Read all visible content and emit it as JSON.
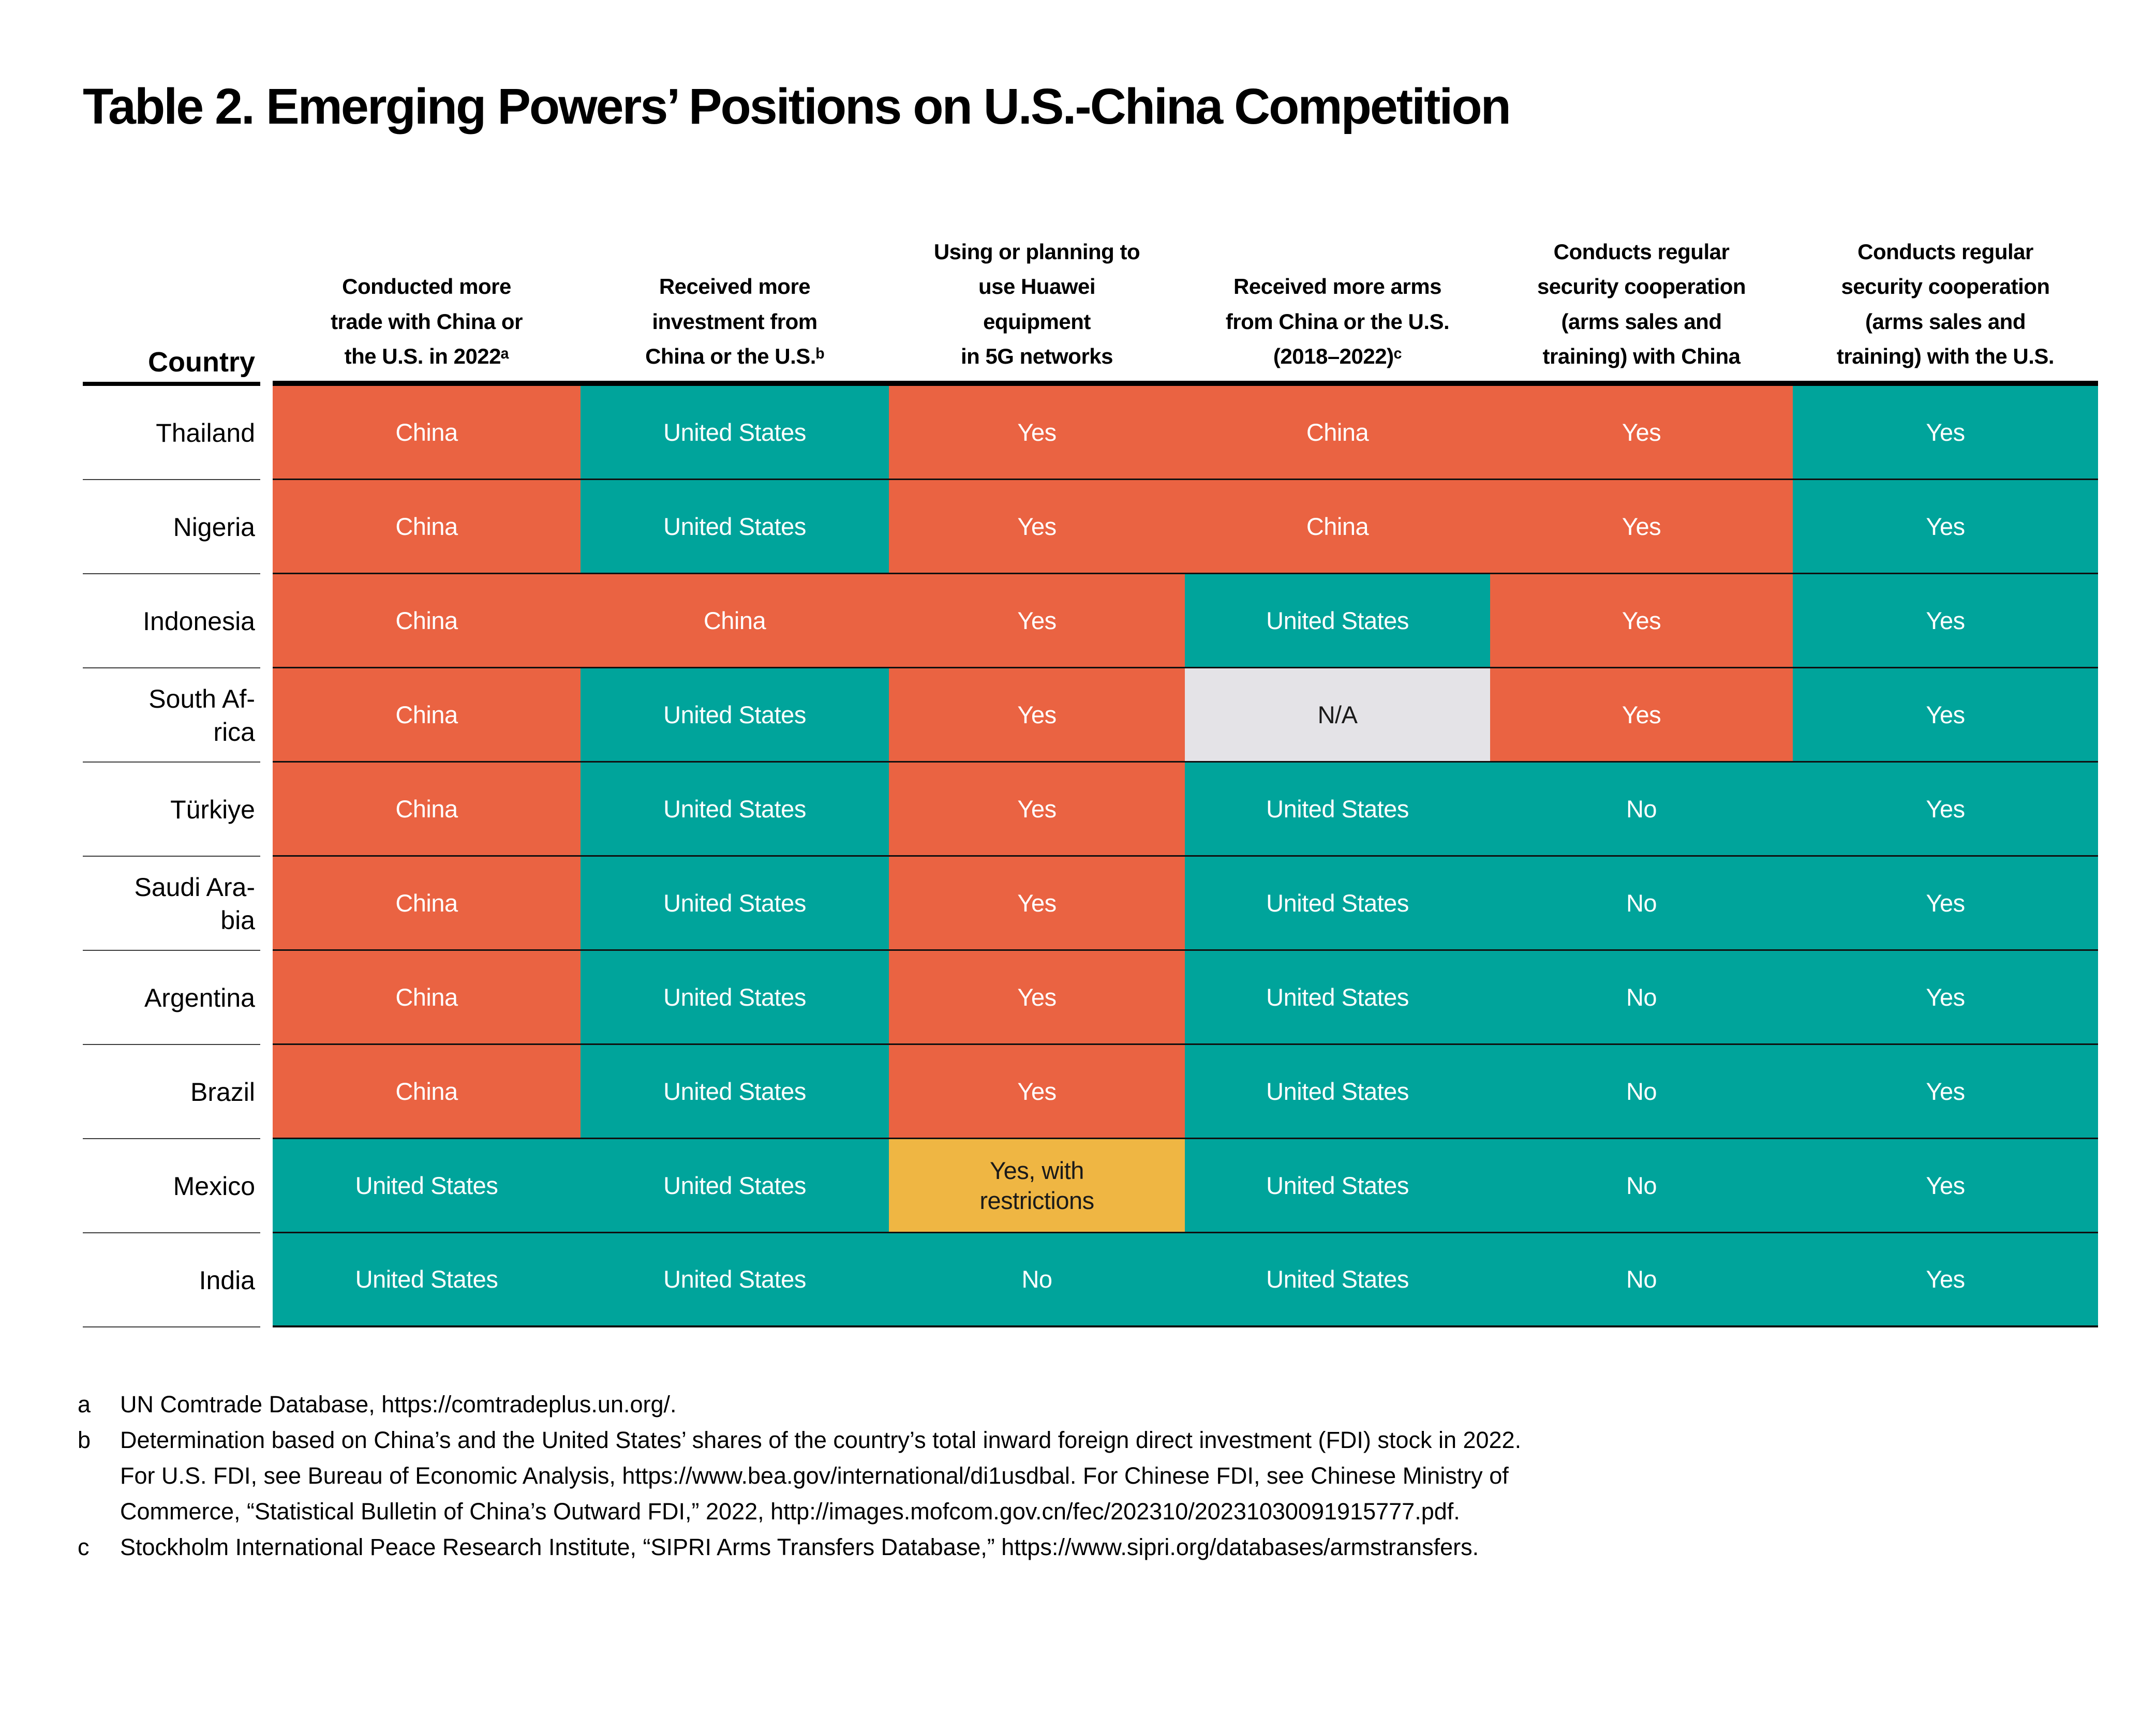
{
  "title": "Table 2. Emerging Powers’ Positions on U.S.-China Competition",
  "color_key": {
    "china_leaning": "#EA6342",
    "us_leaning": "#00A49B",
    "yes_with_restrictions": "#EFB643",
    "not_applicable": "#E4E3E7"
  },
  "chart_data": {
    "type": "table",
    "title": "Table 2. Emerging Powers’ Positions on U.S.-China Competition",
    "country_header": "Country",
    "columns": [
      "Country",
      "Conducted more trade with China or the U.S. in 2022ᵃ",
      "Received more investment from China or the U.S.ᵇ",
      "Using or planning to use Huawei equipment in 5G networks",
      "Received more arms from China or the U.S. (2018–2022)ᶜ",
      "Conducts regular security cooperation (arms sales and training) with China",
      "Conducts regular security cooperation (arms sales and training) with the U.S."
    ],
    "column_keys": [
      "trade",
      "investment",
      "huawei-5g",
      "arms",
      "security-china",
      "security-us"
    ],
    "header_lines": [
      [
        "Conducted more",
        "trade with China or",
        "the U.S. in 2022ᵃ"
      ],
      [
        "Received more",
        "investment from",
        "China or the U.S.ᵇ"
      ],
      [
        "Using or planning to",
        "use Huawei",
        "equipment",
        "in 5G networks"
      ],
      [
        "Received more arms",
        "from China or the U.S.",
        "(2018–2022)ᶜ"
      ],
      [
        "Conducts regular",
        "security cooperation",
        "(arms sales  and",
        "training) with China"
      ],
      [
        "Conducts regular",
        "security cooperation",
        "(arms sales and",
        "training) with the U.S."
      ]
    ],
    "rows": [
      {
        "country": "Thailand",
        "country_display": "Thailand",
        "values": [
          "China",
          "United States",
          "Yes",
          "China",
          "Yes",
          "Yes"
        ],
        "colors": [
          "china",
          "us",
          "china",
          "china",
          "china",
          "us"
        ]
      },
      {
        "country": "Nigeria",
        "country_display": "Nigeria",
        "values": [
          "China",
          "United States",
          "Yes",
          "China",
          "Yes",
          "Yes"
        ],
        "colors": [
          "china",
          "us",
          "china",
          "china",
          "china",
          "us"
        ]
      },
      {
        "country": "Indonesia",
        "country_display": "Indonesia",
        "values": [
          "China",
          "China",
          "Yes",
          "United States",
          "Yes",
          "Yes"
        ],
        "colors": [
          "china",
          "china",
          "china",
          "us",
          "china",
          "us"
        ]
      },
      {
        "country": "South Africa",
        "country_display": "South Af-\nrica",
        "values": [
          "China",
          "United States",
          "Yes",
          "N/A",
          "Yes",
          "Yes"
        ],
        "colors": [
          "china",
          "us",
          "china",
          "na",
          "china",
          "us"
        ]
      },
      {
        "country": "Türkiye",
        "country_display": "Türkiye",
        "values": [
          "China",
          "United States",
          "Yes",
          "United States",
          "No",
          "Yes"
        ],
        "colors": [
          "china",
          "us",
          "china",
          "us",
          "us",
          "us"
        ]
      },
      {
        "country": "Saudi Arabia",
        "country_display": "Saudi Ara-\nbia",
        "values": [
          "China",
          "United States",
          "Yes",
          "United States",
          "No",
          "Yes"
        ],
        "colors": [
          "china",
          "us",
          "china",
          "us",
          "us",
          "us"
        ]
      },
      {
        "country": "Argentina",
        "country_display": "Argentina",
        "values": [
          "China",
          "United States",
          "Yes",
          "United States",
          "No",
          "Yes"
        ],
        "colors": [
          "china",
          "us",
          "china",
          "us",
          "us",
          "us"
        ]
      },
      {
        "country": "Brazil",
        "country_display": "Brazil",
        "values": [
          "China",
          "United States",
          "Yes",
          "United States",
          "No",
          "Yes"
        ],
        "colors": [
          "china",
          "us",
          "china",
          "us",
          "us",
          "us"
        ]
      },
      {
        "country": "Mexico",
        "country_display": "Mexico",
        "values": [
          "United States",
          "United States",
          "Yes, with\nrestrictions",
          "United States",
          "No",
          "Yes"
        ],
        "colors": [
          "us",
          "us",
          "partial",
          "us",
          "us",
          "us"
        ]
      },
      {
        "country": "India",
        "country_display": "India",
        "values": [
          "United States",
          "United States",
          "No",
          "United States",
          "No",
          "Yes"
        ],
        "colors": [
          "us",
          "us",
          "us",
          "us",
          "us",
          "us"
        ]
      }
    ],
    "footnotes": [
      {
        "marker": "a",
        "lines": [
          "UN Comtrade Database, https://comtradeplus.un.org/."
        ]
      },
      {
        "marker": "b",
        "lines": [
          "Determination based on China’s and the United States’ shares of the country’s total inward foreign direct investment (FDI) stock in 2022.",
          "For U.S. FDI, see Bureau of Economic Analysis, https://www.bea.gov/international/di1usdbal. For Chinese FDI, see Chinese Ministry of",
          "Commerce, “Statistical Bulletin of China’s Outward FDI,” 2022, http://images.mofcom.gov.cn/fec/202310/20231030091915777.pdf."
        ]
      },
      {
        "marker": "c",
        "lines": [
          "Stockholm International Peace Research Institute, “SIPRI Arms Transfers Database,” https://www.sipri.org/databases/armstransfers."
        ]
      }
    ]
  }
}
